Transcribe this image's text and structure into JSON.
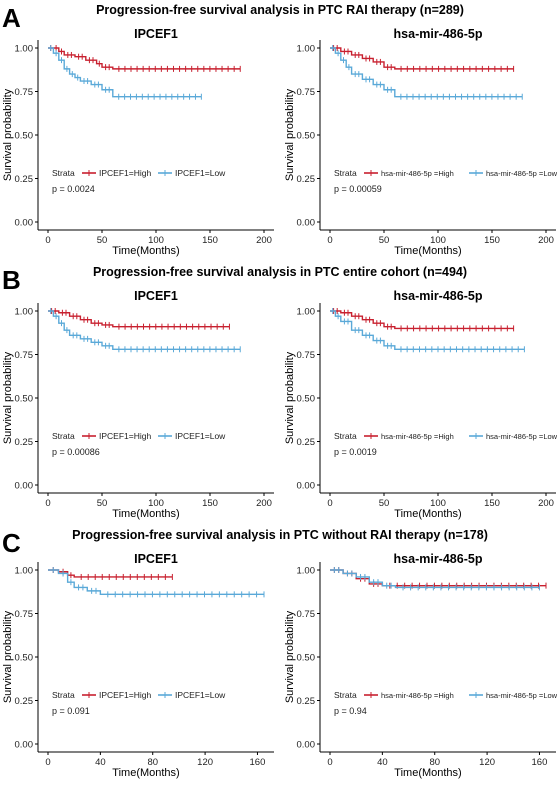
{
  "colors": {
    "high": "#c8202f",
    "low": "#5aa9d8",
    "axis": "#000000",
    "text": "#222222"
  },
  "panels": [
    {
      "letter": "A",
      "title": "Progression-free survival analysis in PTC  RAI therapy (n=289)",
      "charts": [
        {
          "title": "IPCEF1",
          "legend_title": "Strata",
          "legend_high": "IPCEF1=High",
          "legend_low": "IPCEF1=Low",
          "pvalue": "p = 0.0024",
          "ylabel": "Survival probability",
          "xlabel": "Time(Months)",
          "xticks": [
            "0",
            "50",
            "100",
            "150",
            "200"
          ],
          "yticks": [
            "0.00",
            "0.25",
            "0.50",
            "0.75",
            "1.00"
          ]
        },
        {
          "title": "hsa-mir-486-5p",
          "legend_title": "Strata",
          "legend_high": "hsa-mir-486-5p =High",
          "legend_low": "hsa-mir-486-5p =Low",
          "pvalue": "p = 0.00059",
          "ylabel": "Survival probability",
          "xlabel": "Time(Months)",
          "xticks": [
            "0",
            "50",
            "100",
            "150",
            "200"
          ],
          "yticks": [
            "0.00",
            "0.25",
            "0.50",
            "0.75",
            "1.00"
          ]
        }
      ]
    },
    {
      "letter": "B",
      "title": "Progression-free survival analysis in PTC entire cohort  (n=494)",
      "charts": [
        {
          "title": "IPCEF1",
          "legend_title": "Strata",
          "legend_high": "IPCEF1=High",
          "legend_low": "IPCEF1=Low",
          "pvalue": "p = 0.00086",
          "ylabel": "Survival probability",
          "xlabel": "Time(Months)",
          "xticks": [
            "0",
            "50",
            "100",
            "150",
            "200"
          ],
          "yticks": [
            "0.00",
            "0.25",
            "0.50",
            "0.75",
            "1.00"
          ]
        },
        {
          "title": "hsa-mir-486-5p",
          "legend_title": "Strata",
          "legend_high": "hsa-mir-486-5p =High",
          "legend_low": "hsa-mir-486-5p =Low",
          "pvalue": "p = 0.0019",
          "ylabel": "Survival probability",
          "xlabel": "Time(Months)",
          "xticks": [
            "0",
            "50",
            "100",
            "150",
            "200"
          ],
          "yticks": [
            "0.00",
            "0.25",
            "0.50",
            "0.75",
            "1.00"
          ]
        }
      ]
    },
    {
      "letter": "C",
      "title": "Progression-free survival analysis in PTC without RAI therapy (n=178)",
      "charts": [
        {
          "title": "IPCEF1",
          "legend_title": "Strata",
          "legend_high": "IPCEF1=High",
          "legend_low": "IPCEF1=Low",
          "pvalue": "p = 0.091",
          "ylabel": "Survival probability",
          "xlabel": "Time(Months)",
          "xticks": [
            "0",
            "40",
            "80",
            "120",
            "160"
          ],
          "yticks": [
            "0.00",
            "0.25",
            "0.50",
            "0.75",
            "1.00"
          ]
        },
        {
          "title": "hsa-mir-486-5p",
          "legend_title": "Strata",
          "legend_high": "hsa-mir-486-5p =High",
          "legend_low": "hsa-mir-486-5p =Low",
          "pvalue": "p = 0.94",
          "ylabel": "Survival probability",
          "xlabel": "Time(Months)",
          "xticks": [
            "0",
            "40",
            "80",
            "120",
            "160"
          ],
          "yticks": [
            "0.00",
            "0.25",
            "0.50",
            "0.75",
            "1.00"
          ]
        }
      ]
    }
  ],
  "chart_data": [
    {
      "type": "line",
      "panel": "A",
      "title": "IPCEF1",
      "xlim": [
        0,
        200
      ],
      "ylim": [
        0,
        1
      ],
      "series": [
        {
          "name": "IPCEF1=High",
          "points": [
            [
              0,
              1.0
            ],
            [
              5,
              1.0
            ],
            [
              10,
              0.98
            ],
            [
              15,
              0.96
            ],
            [
              25,
              0.95
            ],
            [
              35,
              0.93
            ],
            [
              45,
              0.91
            ],
            [
              50,
              0.89
            ],
            [
              60,
              0.88
            ],
            [
              178,
              0.88
            ]
          ]
        },
        {
          "name": "IPCEF1=Low",
          "points": [
            [
              0,
              1.0
            ],
            [
              5,
              0.97
            ],
            [
              10,
              0.93
            ],
            [
              15,
              0.88
            ],
            [
              20,
              0.85
            ],
            [
              25,
              0.83
            ],
            [
              30,
              0.81
            ],
            [
              40,
              0.79
            ],
            [
              50,
              0.76
            ],
            [
              60,
              0.72
            ],
            [
              142,
              0.72
            ]
          ]
        }
      ]
    },
    {
      "type": "line",
      "panel": "A",
      "title": "hsa-mir-486-5p",
      "xlim": [
        0,
        200
      ],
      "ylim": [
        0,
        1
      ],
      "series": [
        {
          "name": "hsa-mir-486-5p =High",
          "points": [
            [
              0,
              1.0
            ],
            [
              10,
              0.98
            ],
            [
              20,
              0.96
            ],
            [
              30,
              0.94
            ],
            [
              40,
              0.92
            ],
            [
              50,
              0.89
            ],
            [
              60,
              0.88
            ],
            [
              170,
              0.88
            ]
          ]
        },
        {
          "name": "hsa-mir-486-5p =Low",
          "points": [
            [
              0,
              1.0
            ],
            [
              5,
              0.97
            ],
            [
              10,
              0.93
            ],
            [
              15,
              0.89
            ],
            [
              20,
              0.85
            ],
            [
              30,
              0.82
            ],
            [
              40,
              0.79
            ],
            [
              50,
              0.76
            ],
            [
              60,
              0.72
            ],
            [
              178,
              0.72
            ]
          ]
        }
      ]
    },
    {
      "type": "line",
      "panel": "B",
      "title": "IPCEF1",
      "xlim": [
        0,
        200
      ],
      "ylim": [
        0,
        1
      ],
      "series": [
        {
          "name": "IPCEF1=High",
          "points": [
            [
              0,
              1.0
            ],
            [
              10,
              0.99
            ],
            [
              20,
              0.97
            ],
            [
              30,
              0.95
            ],
            [
              40,
              0.93
            ],
            [
              50,
              0.92
            ],
            [
              60,
              0.91
            ],
            [
              168,
              0.91
            ]
          ]
        },
        {
          "name": "IPCEF1=Low",
          "points": [
            [
              0,
              1.0
            ],
            [
              5,
              0.97
            ],
            [
              10,
              0.93
            ],
            [
              15,
              0.89
            ],
            [
              20,
              0.86
            ],
            [
              30,
              0.84
            ],
            [
              40,
              0.82
            ],
            [
              50,
              0.8
            ],
            [
              60,
              0.78
            ],
            [
              178,
              0.78
            ]
          ]
        }
      ]
    },
    {
      "type": "line",
      "panel": "B",
      "title": "hsa-mir-486-5p",
      "xlim": [
        0,
        200
      ],
      "ylim": [
        0,
        1
      ],
      "series": [
        {
          "name": "hsa-mir-486-5p =High",
          "points": [
            [
              0,
              1.0
            ],
            [
              10,
              0.99
            ],
            [
              20,
              0.97
            ],
            [
              30,
              0.95
            ],
            [
              40,
              0.93
            ],
            [
              50,
              0.91
            ],
            [
              60,
              0.9
            ],
            [
              170,
              0.9
            ]
          ]
        },
        {
          "name": "hsa-mir-486-5p =Low",
          "points": [
            [
              0,
              1.0
            ],
            [
              5,
              0.97
            ],
            [
              10,
              0.94
            ],
            [
              20,
              0.89
            ],
            [
              30,
              0.86
            ],
            [
              40,
              0.83
            ],
            [
              50,
              0.8
            ],
            [
              60,
              0.78
            ],
            [
              180,
              0.78
            ]
          ]
        }
      ]
    },
    {
      "type": "line",
      "panel": "C",
      "title": "IPCEF1",
      "xlim": [
        0,
        165
      ],
      "ylim": [
        0,
        1
      ],
      "series": [
        {
          "name": "IPCEF1=High",
          "points": [
            [
              0,
              1.0
            ],
            [
              8,
              0.99
            ],
            [
              15,
              0.97
            ],
            [
              20,
              0.96
            ],
            [
              95,
              0.96
            ]
          ]
        },
        {
          "name": "IPCEF1=Low",
          "points": [
            [
              0,
              1.0
            ],
            [
              8,
              0.98
            ],
            [
              15,
              0.93
            ],
            [
              20,
              0.9
            ],
            [
              30,
              0.88
            ],
            [
              40,
              0.86
            ],
            [
              165,
              0.86
            ]
          ]
        }
      ]
    },
    {
      "type": "line",
      "panel": "C",
      "title": "hsa-mir-486-5p",
      "xlim": [
        0,
        165
      ],
      "ylim": [
        0,
        1
      ],
      "series": [
        {
          "name": "hsa-mir-486-5p =High",
          "points": [
            [
              0,
              1.0
            ],
            [
              10,
              0.98
            ],
            [
              20,
              0.95
            ],
            [
              30,
              0.92
            ],
            [
              40,
              0.91
            ],
            [
              165,
              0.91
            ]
          ]
        },
        {
          "name": "hsa-mir-486-5p =Low",
          "points": [
            [
              0,
              1.0
            ],
            [
              10,
              0.98
            ],
            [
              20,
              0.96
            ],
            [
              30,
              0.93
            ],
            [
              40,
              0.91
            ],
            [
              50,
              0.9
            ],
            [
              160,
              0.9
            ]
          ]
        }
      ]
    }
  ]
}
